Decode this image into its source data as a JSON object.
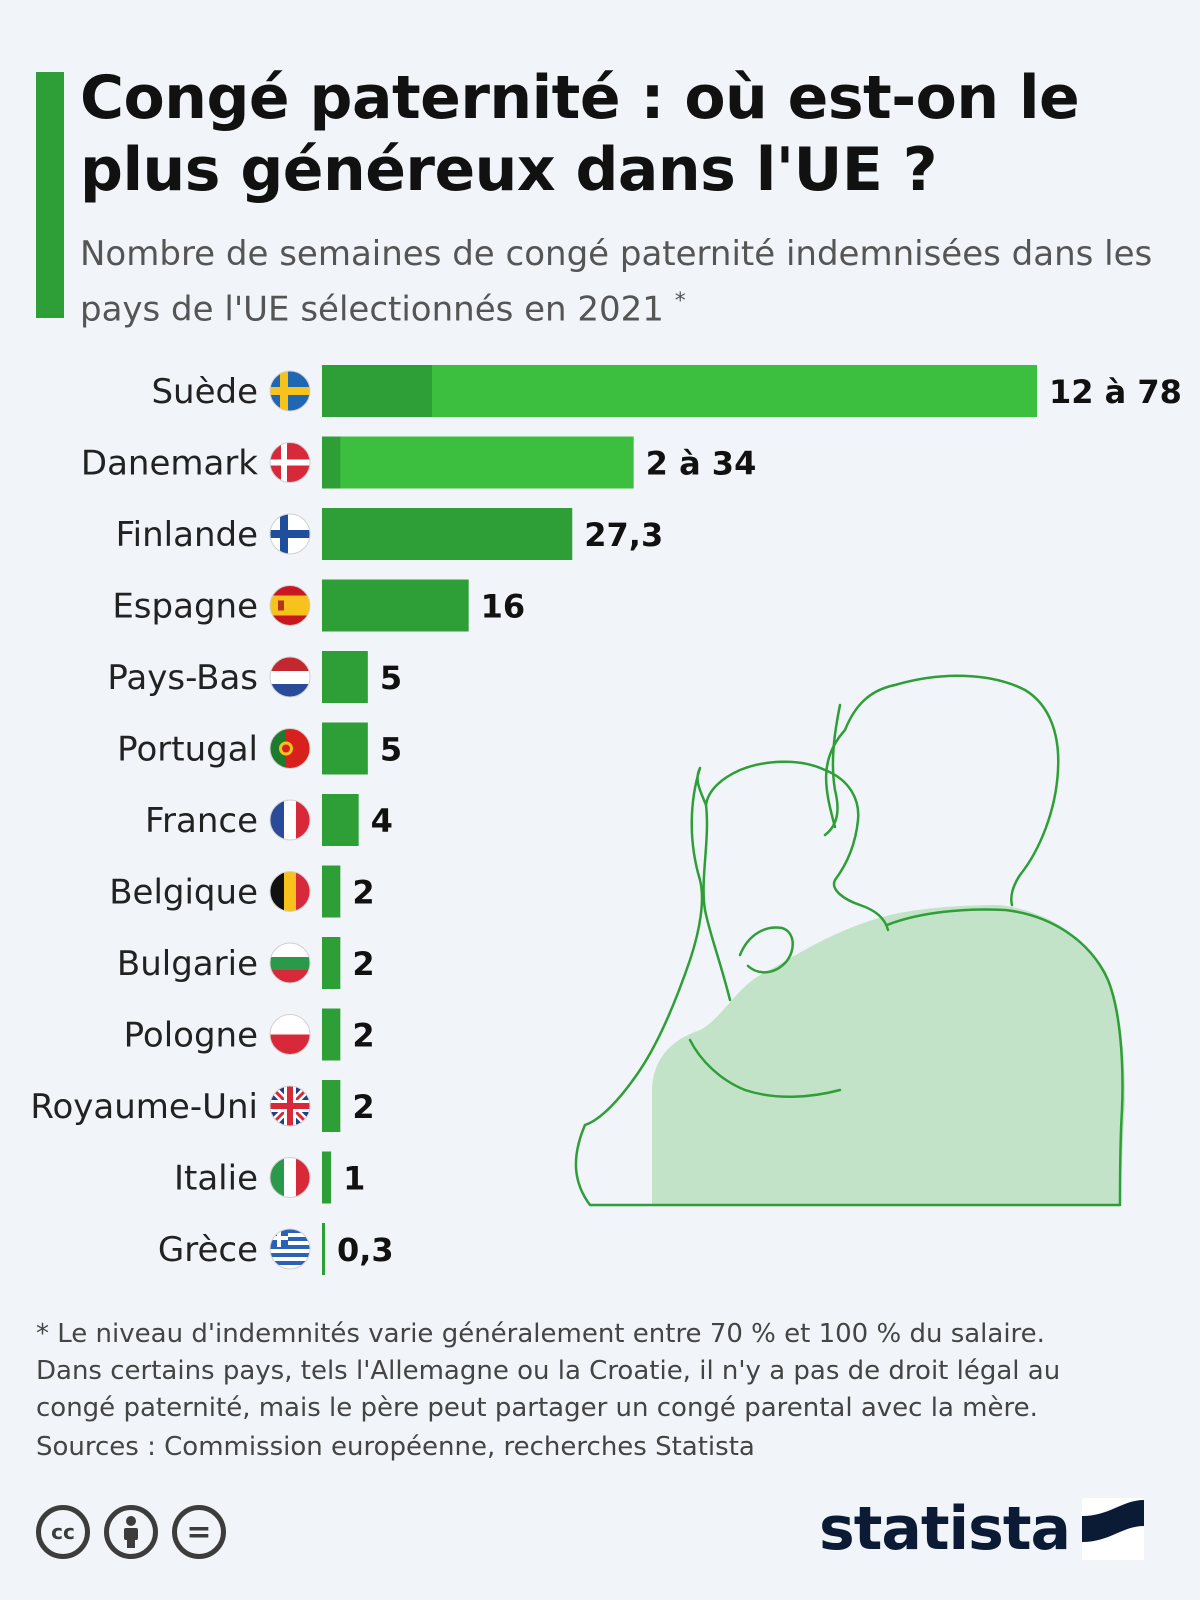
{
  "header": {
    "title": "Congé paternité : où est-on le plus généreux dans l'UE ?",
    "subtitle": "Nombre de semaines de congé paternité indemnisées dans les pays de l'UE sélectionnés en 2021",
    "subtitle_marker": "*"
  },
  "chart_data": {
    "type": "bar",
    "orientation": "horizontal",
    "categories": [
      "Suède",
      "Danemark",
      "Finlande",
      "Espagne",
      "Pays-Bas",
      "Portugal",
      "France",
      "Belgique",
      "Bulgarie",
      "Pologne",
      "Royaume-Uni",
      "Italie",
      "Grèce"
    ],
    "flags": [
      "flag-sweden-icon",
      "flag-denmark-icon",
      "flag-finland-icon",
      "flag-spain-icon",
      "flag-netherlands-icon",
      "flag-portugal-icon",
      "flag-france-icon",
      "flag-belgium-icon",
      "flag-bulgaria-icon",
      "flag-poland-icon",
      "flag-uk-icon",
      "flag-italy-icon",
      "flag-greece-icon"
    ],
    "min_values": [
      12,
      2,
      27.3,
      16,
      5,
      5,
      4,
      2,
      2,
      2,
      2,
      1,
      0.3
    ],
    "max_values": [
      78,
      34,
      27.3,
      16,
      5,
      5,
      4,
      2,
      2,
      2,
      2,
      1,
      0.3
    ],
    "value_labels": [
      "12 à 78",
      "2 à 34",
      "27,3",
      "16",
      "5",
      "5",
      "4",
      "2",
      "2",
      "2",
      "2",
      "1",
      "0,3"
    ],
    "xlim": [
      0,
      78
    ],
    "grid": false,
    "colors": {
      "bar": "#2e9e37",
      "range": "#3cbe3f"
    }
  },
  "footnote": {
    "lines": [
      " * Le niveau d'indemnités varie généralement entre 70 % et 100 % du salaire.",
      "Dans certains pays, tels l'Allemagne ou la Croatie, il n'y a pas de droit légal au",
      "congé paternité, mais le père peut partager un congé parental avec la mère."
    ],
    "sources": "Sources : Commission européenne, recherches Statista"
  },
  "license_icons": [
    {
      "name": "cc-icon",
      "glyph": "cc"
    },
    {
      "name": "attribution-icon",
      "glyph": ""
    },
    {
      "name": "no-derivatives-icon",
      "glyph": "="
    }
  ],
  "brand": {
    "name": "statista",
    "icon": "statista-logo-icon"
  }
}
